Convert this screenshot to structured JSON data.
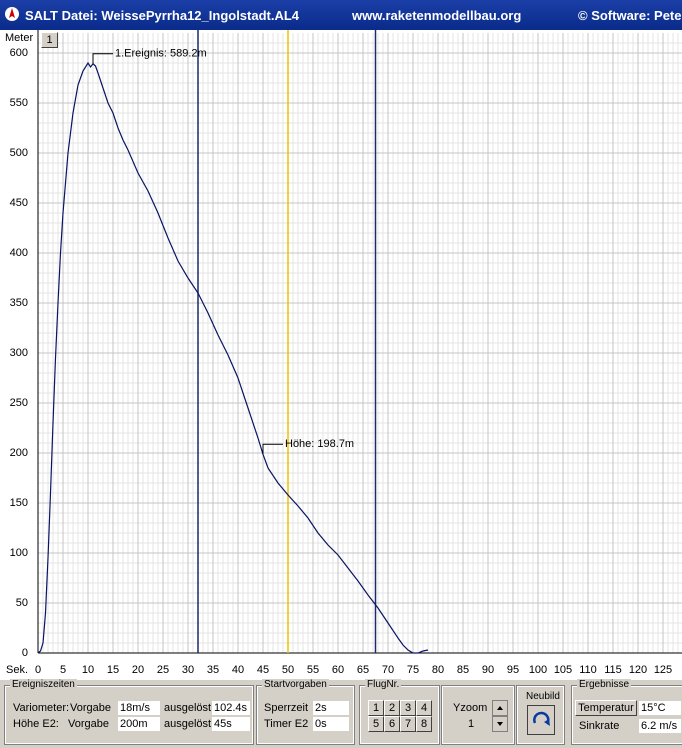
{
  "window": {
    "title": "SALT Datei: WeissePyrrha12_Ingolstadt.AL4",
    "url": "www.raketenmodellbau.org",
    "copyright": "© Software: Pete"
  },
  "zoom_button": "1",
  "chart_data": {
    "type": "line",
    "ylabel": "Meter",
    "xlabel": "Sek.",
    "x": [
      0,
      0.5,
      1,
      1.5,
      2,
      2.5,
      3,
      3.5,
      4,
      4.5,
      5,
      5.5,
      6,
      7,
      8,
      9,
      10,
      10.5,
      11,
      11.5,
      12,
      13,
      14,
      15,
      16,
      17,
      18,
      20,
      22,
      24,
      26,
      28,
      30,
      32,
      34,
      36,
      38,
      40,
      42,
      44,
      45,
      46,
      48,
      50,
      52,
      54,
      56,
      58,
      60,
      62,
      64,
      66,
      68,
      70,
      72,
      73,
      74,
      75,
      76,
      77,
      78
    ],
    "series": [
      {
        "color": "#0a1464",
        "values": [
          0,
          2,
          10,
          40,
          95,
          160,
          230,
          295,
          350,
          400,
          440,
          470,
          500,
          540,
          568,
          582,
          590,
          586,
          589.2,
          587,
          580,
          565,
          550,
          540,
          525,
          513,
          503,
          480,
          462,
          440,
          415,
          392,
          375,
          360,
          340,
          318,
          298,
          275,
          245,
          215,
          198.7,
          185,
          170,
          158,
          147,
          135,
          120,
          108,
          98,
          85,
          72,
          58,
          45,
          30,
          15,
          8,
          3,
          0,
          0,
          2,
          3
        ]
      }
    ],
    "xlim": [
      0,
      128.8
    ],
    "ylim": [
      0,
      620
    ],
    "xticks": [
      0,
      5,
      10,
      15,
      20,
      25,
      30,
      35,
      40,
      45,
      50,
      55,
      60,
      65,
      70,
      75,
      80,
      85,
      90,
      95,
      100,
      105,
      110,
      115,
      120,
      125
    ],
    "yticks": [
      0,
      50,
      100,
      150,
      200,
      250,
      300,
      350,
      400,
      450,
      500,
      550,
      600
    ],
    "grid": true,
    "markers": [
      {
        "x": 32,
        "color": "#1c2a6a"
      },
      {
        "x": 50,
        "color": "#f2c200"
      },
      {
        "x": 67.5,
        "color": "#1c2a6a"
      }
    ],
    "annotations": [
      {
        "text": "1.Ereignis: 589.2m",
        "x": 11,
        "y": 589.2
      },
      {
        "text": "Höhe: 198.7m",
        "x": 45,
        "y": 198.7
      }
    ]
  },
  "panel": {
    "ereigniszeiten": {
      "title": "Ereigniszeiten",
      "rows": [
        [
          "Variometer:",
          "Vorgabe",
          "18m/s",
          "ausgelöst",
          "102.4s"
        ],
        [
          "Höhe E2:",
          "Vorgabe",
          "200m",
          "ausgelöst",
          "45s"
        ]
      ]
    },
    "startvorgaben": {
      "title": "Startvorgaben",
      "rows": [
        [
          "Sperrzeit",
          "2s"
        ],
        [
          "Timer E2",
          "0s"
        ]
      ]
    },
    "flugnr": {
      "title": "FlugNr.",
      "buttons": [
        "1",
        "2",
        "3",
        "4",
        "5",
        "6",
        "7",
        "8"
      ]
    },
    "yzoom": {
      "label": "Yzoom",
      "value": "1"
    },
    "neubild": {
      "title": "Neubild"
    },
    "ergebnisse": {
      "title": "Ergebnisse",
      "rows": [
        [
          "Temperatur",
          "15°C"
        ],
        [
          "Sinkrate",
          "6.2 m/s"
        ]
      ]
    }
  }
}
